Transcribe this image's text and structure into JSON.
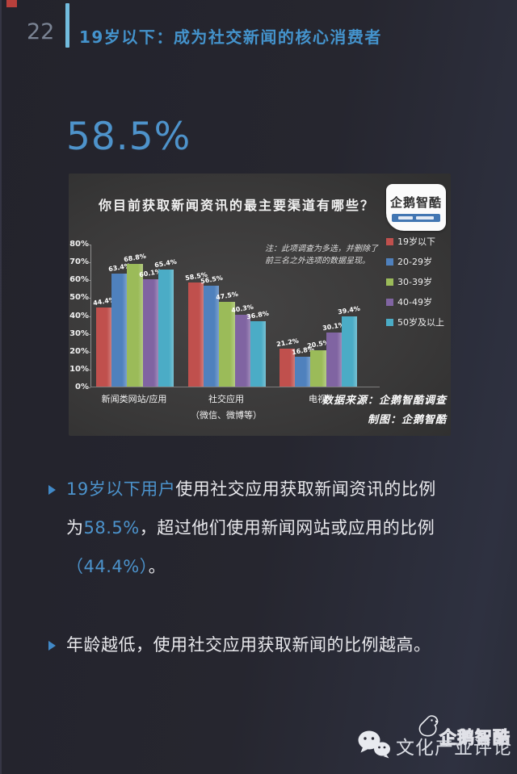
{
  "page": {
    "number": "22",
    "title": "19岁以下：成为社交新闻的核心消费者",
    "big_stat": "58.5%"
  },
  "chart": {
    "title": "你目前获取新闻资讯的最主要渠道有哪些？",
    "logo_label": "企鹅智酷",
    "note_lines": [
      "注：此项调查为多选，并删除了",
      "前三名之外选项的数据呈现。"
    ],
    "source_lines": [
      "数据来源：企鹅智酷调查",
      "制图：企鹅智酷"
    ]
  },
  "chart_data": {
    "type": "bar",
    "title": "你目前获取新闻资讯的最主要渠道有哪些？",
    "categories": [
      "新闻类网站/应用",
      "社交应用（微信、微博等）",
      "电视"
    ],
    "categories_display": [
      [
        "新闻类网站/应用"
      ],
      [
        "社交应用",
        "（微信、微博等）"
      ],
      [
        "电视"
      ]
    ],
    "series": [
      {
        "name": "19岁以下",
        "color": "#c0504d",
        "values": [
          44.4,
          58.5,
          21.2
        ]
      },
      {
        "name": "20-29岁",
        "color": "#4f81bd",
        "values": [
          63.4,
          56.5,
          16.8
        ]
      },
      {
        "name": "30-39岁",
        "color": "#9bbb59",
        "values": [
          68.8,
          47.5,
          20.5
        ]
      },
      {
        "name": "40-49岁",
        "color": "#8064a2",
        "values": [
          60.1,
          40.3,
          30.1
        ]
      },
      {
        "name": "50岁及以上",
        "color": "#4bacc6",
        "values": [
          65.4,
          36.8,
          39.4
        ]
      }
    ],
    "ylabel": "",
    "xlabel": "",
    "ylim": [
      0,
      80
    ],
    "ytick_step": 10,
    "ytick_format": "percent",
    "grid": false,
    "legend_position": "right",
    "value_labels": true
  },
  "bullets": [
    {
      "lines": [
        [
          {
            "t": "19岁以下用户",
            "c": "#4c93cc"
          },
          {
            "t": "使用社交应用获取新闻资讯的比例",
            "c": "#e8e8ec"
          }
        ],
        [
          {
            "t": "为",
            "c": "#e8e8ec"
          },
          {
            "t": "58.5%",
            "c": "#4c93cc"
          },
          {
            "t": "，超过他们使用新闻网站或应用的比例",
            "c": "#e8e8ec"
          }
        ],
        [
          {
            "t": "（44.4%）",
            "c": "#4c93cc"
          },
          {
            "t": "。",
            "c": "#e8e8ec"
          }
        ]
      ]
    },
    {
      "lines": [
        [
          {
            "t": "年龄越低，使用社交应用获取新闻的比例越高。",
            "c": "#e8e8ec"
          }
        ]
      ]
    }
  ],
  "footer": {
    "penguin_logo_label": "企鹅智酷",
    "wechat_account_label": "文化产业评论"
  },
  "colors": {
    "accent_blue": "#4493cc",
    "stat_blue": "#4e93cb",
    "header_bar": "#72bcde",
    "panel_bg": "#3a3939",
    "page_bg": "#26262f",
    "corner_mark": "#b8403c"
  }
}
